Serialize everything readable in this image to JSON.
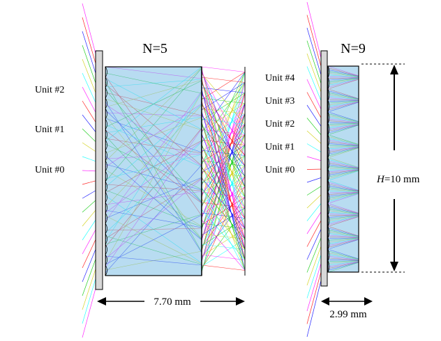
{
  "left_panel": {
    "title": "N=5",
    "unit_labels": [
      "Unit #2",
      "Unit #1",
      "Unit #0"
    ],
    "width_label": "7.70 mm"
  },
  "right_panel": {
    "title": "N=9",
    "unit_labels": [
      "Unit #4",
      "Unit #3",
      "Unit #2",
      "Unit #1",
      "Unit #0"
    ],
    "width_label": "2.99 mm",
    "height_label_italic": "H",
    "height_label_rest": "=10 mm"
  },
  "ray_colors": [
    "#ff00ff",
    "#ff0000",
    "#0000ff",
    "#00c800",
    "#cccc00",
    "#00ffff"
  ],
  "colors": {
    "array_fill": "#7ec0e6",
    "array_stroke": "#000000",
    "window_fill": "#d8d8d8",
    "arrow": "#000000",
    "text": "#000000"
  }
}
